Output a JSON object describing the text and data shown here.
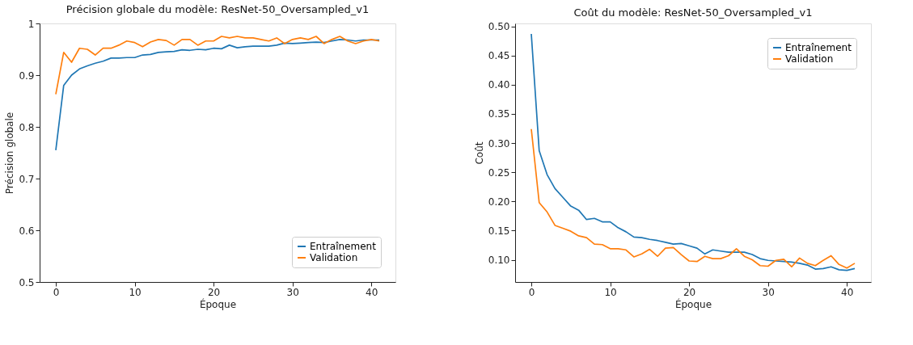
{
  "chart_data": [
    {
      "type": "line",
      "title": "Précision globale du modèle: ResNet-50_Oversampled_v1",
      "xlabel": "Époque",
      "ylabel": "Précision globale",
      "x": [
        0,
        1,
        2,
        3,
        4,
        5,
        6,
        7,
        8,
        9,
        10,
        11,
        12,
        13,
        14,
        15,
        16,
        17,
        18,
        19,
        20,
        21,
        22,
        23,
        24,
        25,
        26,
        27,
        28,
        29,
        30,
        31,
        32,
        33,
        34,
        35,
        36,
        37,
        38,
        39,
        40,
        41
      ],
      "series": [
        {
          "name": "Entraînement",
          "color": "#1f77b4",
          "values": [
            0.755,
            0.88,
            0.9,
            0.912,
            0.918,
            0.923,
            0.927,
            0.933,
            0.933,
            0.934,
            0.934,
            0.939,
            0.94,
            0.944,
            0.945,
            0.946,
            0.949,
            0.948,
            0.95,
            0.949,
            0.952,
            0.951,
            0.958,
            0.953,
            0.955,
            0.956,
            0.956,
            0.956,
            0.958,
            0.962,
            0.961,
            0.962,
            0.963,
            0.964,
            0.963,
            0.966,
            0.969,
            0.968,
            0.966,
            0.968,
            0.968,
            0.968
          ]
        },
        {
          "name": "Validation",
          "color": "#ff7f0e",
          "values": [
            0.863,
            0.944,
            0.925,
            0.952,
            0.95,
            0.939,
            0.952,
            0.952,
            0.958,
            0.966,
            0.963,
            0.955,
            0.964,
            0.969,
            0.967,
            0.958,
            0.969,
            0.969,
            0.958,
            0.966,
            0.966,
            0.975,
            0.972,
            0.975,
            0.972,
            0.972,
            0.969,
            0.966,
            0.972,
            0.961,
            0.969,
            0.972,
            0.969,
            0.975,
            0.961,
            0.969,
            0.975,
            0.966,
            0.961,
            0.966,
            0.969,
            0.966
          ]
        }
      ],
      "xlim": [
        -2.05,
        43.05
      ],
      "xticks": [
        0,
        10,
        20,
        30,
        40
      ],
      "ylim": [
        0.5,
        1.0
      ],
      "yticks": [
        0.5,
        0.6,
        0.7,
        0.8,
        0.9,
        1.0
      ],
      "grid": false,
      "legend": "bottom right",
      "marker": "none",
      "line_style": "solid"
    },
    {
      "type": "line",
      "title": "Coût du modèle: ResNet-50_Oversampled_v1",
      "xlabel": "Époque",
      "ylabel": "Coût",
      "x": [
        0,
        1,
        2,
        3,
        4,
        5,
        6,
        7,
        8,
        9,
        10,
        11,
        12,
        13,
        14,
        15,
        16,
        17,
        18,
        19,
        20,
        21,
        22,
        23,
        24,
        25,
        26,
        27,
        28,
        29,
        30,
        31,
        32,
        33,
        34,
        35,
        36,
        37,
        38,
        39,
        40,
        41
      ],
      "series": [
        {
          "name": "Entraînement",
          "color": "#1f77b4",
          "values": [
            0.487,
            0.287,
            0.246,
            0.222,
            0.207,
            0.192,
            0.185,
            0.169,
            0.171,
            0.165,
            0.165,
            0.155,
            0.148,
            0.139,
            0.138,
            0.135,
            0.133,
            0.13,
            0.127,
            0.128,
            0.124,
            0.12,
            0.11,
            0.117,
            0.115,
            0.113,
            0.113,
            0.113,
            0.109,
            0.102,
            0.099,
            0.098,
            0.097,
            0.096,
            0.094,
            0.091,
            0.084,
            0.085,
            0.088,
            0.083,
            0.082,
            0.085
          ]
        },
        {
          "name": "Validation",
          "color": "#ff7f0e",
          "values": [
            0.324,
            0.198,
            0.182,
            0.159,
            0.154,
            0.149,
            0.141,
            0.138,
            0.127,
            0.126,
            0.119,
            0.119,
            0.117,
            0.105,
            0.11,
            0.118,
            0.106,
            0.12,
            0.121,
            0.109,
            0.098,
            0.097,
            0.106,
            0.102,
            0.102,
            0.107,
            0.119,
            0.106,
            0.1,
            0.09,
            0.089,
            0.099,
            0.101,
            0.088,
            0.103,
            0.094,
            0.09,
            0.099,
            0.107,
            0.092,
            0.086,
            0.094
          ]
        }
      ],
      "xlim": [
        -2.05,
        43.05
      ],
      "xticks": [
        0,
        10,
        20,
        30,
        40
      ],
      "ylim": [
        0.062,
        0.505
      ],
      "yticks": [
        {
          "value": 0.1,
          "label": "0.10"
        },
        {
          "value": 0.15,
          "label": "0.15"
        },
        {
          "value": 0.2,
          "label": "0.20"
        },
        {
          "value": 0.25,
          "label": "0.25"
        },
        {
          "value": 0.3,
          "label": "0.30"
        },
        {
          "value": 0.35,
          "label": "0.35"
        },
        {
          "value": 0.4,
          "label": "0.40"
        },
        {
          "value": 0.45,
          "label": "0.45"
        },
        {
          "value": 0.5,
          "label": "0.50"
        }
      ],
      "grid": false,
      "legend": "top right",
      "marker": "none",
      "line_style": "solid"
    }
  ]
}
